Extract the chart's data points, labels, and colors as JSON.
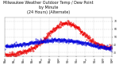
{
  "title": "Milwaukee Weather Outdoor Temp / Dew Point",
  "subtitle1": "by Minute",
  "subtitle2": "(24 Hours) (Alternate)",
  "bg_color": "#ffffff",
  "grid_color": "#b0b0b0",
  "temp_color": "#ee0000",
  "dew_color": "#0000dd",
  "ylim": [
    25,
    75
  ],
  "xlim": [
    0,
    1440
  ],
  "yticks": [
    30,
    40,
    50,
    60,
    70
  ],
  "title_fontsize": 3.5,
  "n_points": 1440
}
